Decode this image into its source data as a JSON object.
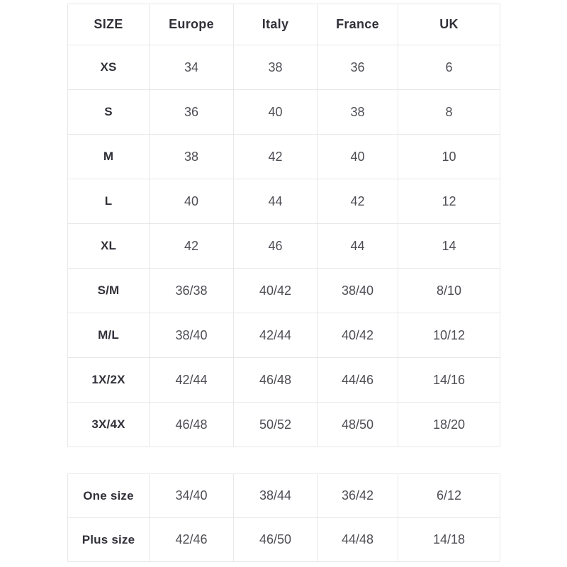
{
  "column_keys": [
    "size",
    "europe",
    "italy",
    "france",
    "uk"
  ],
  "main_table": {
    "headers": [
      "SIZE",
      "Europe",
      "Italy",
      "France",
      "UK"
    ],
    "rows": [
      {
        "size": "XS",
        "europe": "34",
        "italy": "38",
        "france": "36",
        "uk": "6"
      },
      {
        "size": "S",
        "europe": "36",
        "italy": "40",
        "france": "38",
        "uk": "8"
      },
      {
        "size": "M",
        "europe": "38",
        "italy": "42",
        "france": "40",
        "uk": "10"
      },
      {
        "size": "L",
        "europe": "40",
        "italy": "44",
        "france": "42",
        "uk": "12"
      },
      {
        "size": "XL",
        "europe": "42",
        "italy": "46",
        "france": "44",
        "uk": "14"
      },
      {
        "size": "S/M",
        "europe": "36/38",
        "italy": "40/42",
        "france": "38/40",
        "uk": "8/10"
      },
      {
        "size": "M/L",
        "europe": "38/40",
        "italy": "42/44",
        "france": "40/42",
        "uk": "10/12"
      },
      {
        "size": "1X/2X",
        "europe": "42/44",
        "italy": "46/48",
        "france": "44/46",
        "uk": "14/16"
      },
      {
        "size": "3X/4X",
        "europe": "46/48",
        "italy": "50/52",
        "france": "48/50",
        "uk": "18/20"
      }
    ]
  },
  "extra_table": {
    "rows": [
      {
        "size": "One size",
        "europe": "34/40",
        "italy": "38/44",
        "france": "36/42",
        "uk": "6/12"
      },
      {
        "size": "Plus size",
        "europe": "42/46",
        "italy": "46/50",
        "france": "44/48",
        "uk": "14/18"
      }
    ]
  },
  "colors": {
    "background": "#ffffff",
    "border": "#e8e8e8",
    "header_text": "#31313a",
    "value_text": "#4d4d55"
  }
}
